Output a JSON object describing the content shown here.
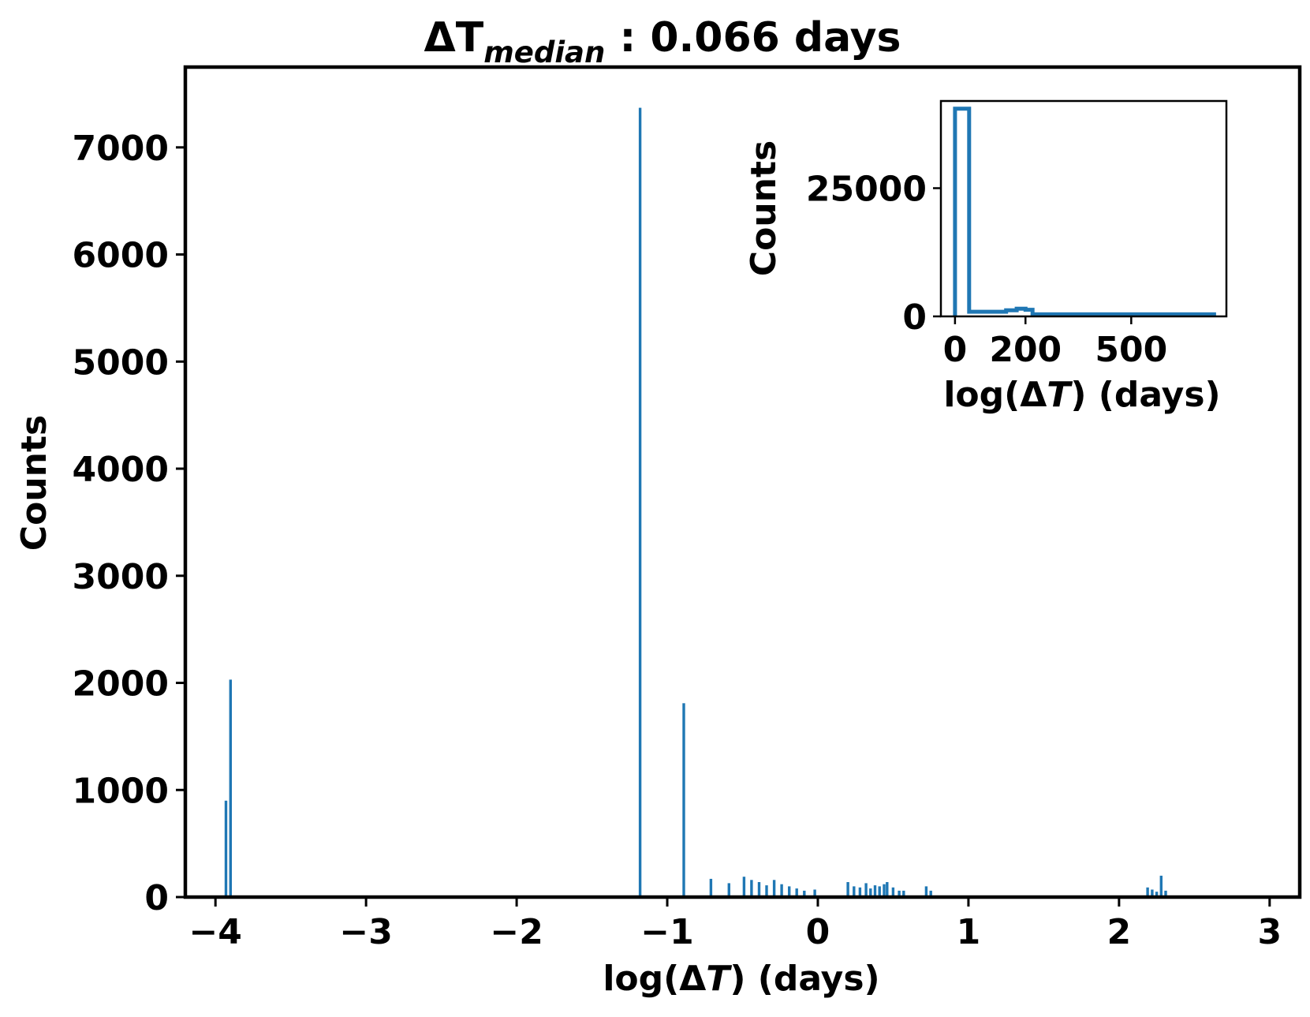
{
  "colors": {
    "bar": "#1f77b4",
    "axis": "#000000",
    "background": "#ffffff"
  },
  "chart_data": [
    {
      "id": "main",
      "type": "bar",
      "title_prefix": "ΔT",
      "title_subscript": "median",
      "title_suffix": " : 0.066 days",
      "xlabel_prefix": "log(Δ",
      "xlabel_italic": "T",
      "xlabel_suffix": ") (days)",
      "ylabel": "Counts",
      "xlim": [
        -4.2,
        3.2
      ],
      "ylim": [
        0,
        7750
      ],
      "xticks": [
        -4,
        -3,
        -2,
        -1,
        0,
        1,
        2,
        3
      ],
      "xtick_labels": [
        "−4",
        "−3",
        "−2",
        "−1",
        "0",
        "1",
        "2",
        "3"
      ],
      "yticks": [
        0,
        1000,
        2000,
        3000,
        4000,
        5000,
        6000,
        7000
      ],
      "ytick_labels": [
        "0",
        "1000",
        "2000",
        "3000",
        "4000",
        "5000",
        "6000",
        "7000"
      ],
      "grid": false,
      "bin_width": 0.018,
      "bars": [
        {
          "x": -3.93,
          "y": 900
        },
        {
          "x": -3.9,
          "y": 2030
        },
        {
          "x": -1.18,
          "y": 7370
        },
        {
          "x": -0.89,
          "y": 1810
        },
        {
          "x": -0.71,
          "y": 170
        },
        {
          "x": -0.59,
          "y": 130
        },
        {
          "x": -0.49,
          "y": 190
        },
        {
          "x": -0.44,
          "y": 160
        },
        {
          "x": -0.39,
          "y": 140
        },
        {
          "x": -0.34,
          "y": 110
        },
        {
          "x": -0.29,
          "y": 160
        },
        {
          "x": -0.24,
          "y": 120
        },
        {
          "x": -0.19,
          "y": 100
        },
        {
          "x": -0.14,
          "y": 80
        },
        {
          "x": -0.09,
          "y": 60
        },
        {
          "x": -0.02,
          "y": 70
        },
        {
          "x": 0.2,
          "y": 140
        },
        {
          "x": 0.24,
          "y": 100
        },
        {
          "x": 0.28,
          "y": 90
        },
        {
          "x": 0.32,
          "y": 130
        },
        {
          "x": 0.35,
          "y": 80
        },
        {
          "x": 0.38,
          "y": 110
        },
        {
          "x": 0.41,
          "y": 100
        },
        {
          "x": 0.44,
          "y": 120
        },
        {
          "x": 0.46,
          "y": 140
        },
        {
          "x": 0.5,
          "y": 90
        },
        {
          "x": 0.54,
          "y": 60
        },
        {
          "x": 0.57,
          "y": 60
        },
        {
          "x": 0.72,
          "y": 100
        },
        {
          "x": 0.75,
          "y": 60
        },
        {
          "x": 2.19,
          "y": 90
        },
        {
          "x": 2.22,
          "y": 70
        },
        {
          "x": 2.25,
          "y": 50
        },
        {
          "x": 2.28,
          "y": 200
        },
        {
          "x": 2.31,
          "y": 60
        }
      ]
    },
    {
      "id": "inset",
      "type": "bar",
      "xlabel_prefix": "log(Δ",
      "xlabel_italic": "T",
      "xlabel_suffix": ") (days)",
      "ylabel": "Counts",
      "xlim": [
        -40,
        770
      ],
      "ylim": [
        0,
        42000
      ],
      "xticks": [
        0,
        200,
        500
      ],
      "xtick_labels": [
        "0",
        "200",
        "500"
      ],
      "yticks": [
        0,
        25000
      ],
      "ytick_labels": [
        "0",
        "25000"
      ],
      "grid": false,
      "style": "step",
      "step_x": [
        0,
        0,
        40,
        40,
        145,
        145,
        175,
        175,
        200,
        200,
        220,
        220,
        735,
        735
      ],
      "step_y": [
        0,
        40500,
        40500,
        900,
        900,
        1200,
        1200,
        1500,
        1500,
        1300,
        1300,
        400,
        400,
        0
      ]
    }
  ]
}
